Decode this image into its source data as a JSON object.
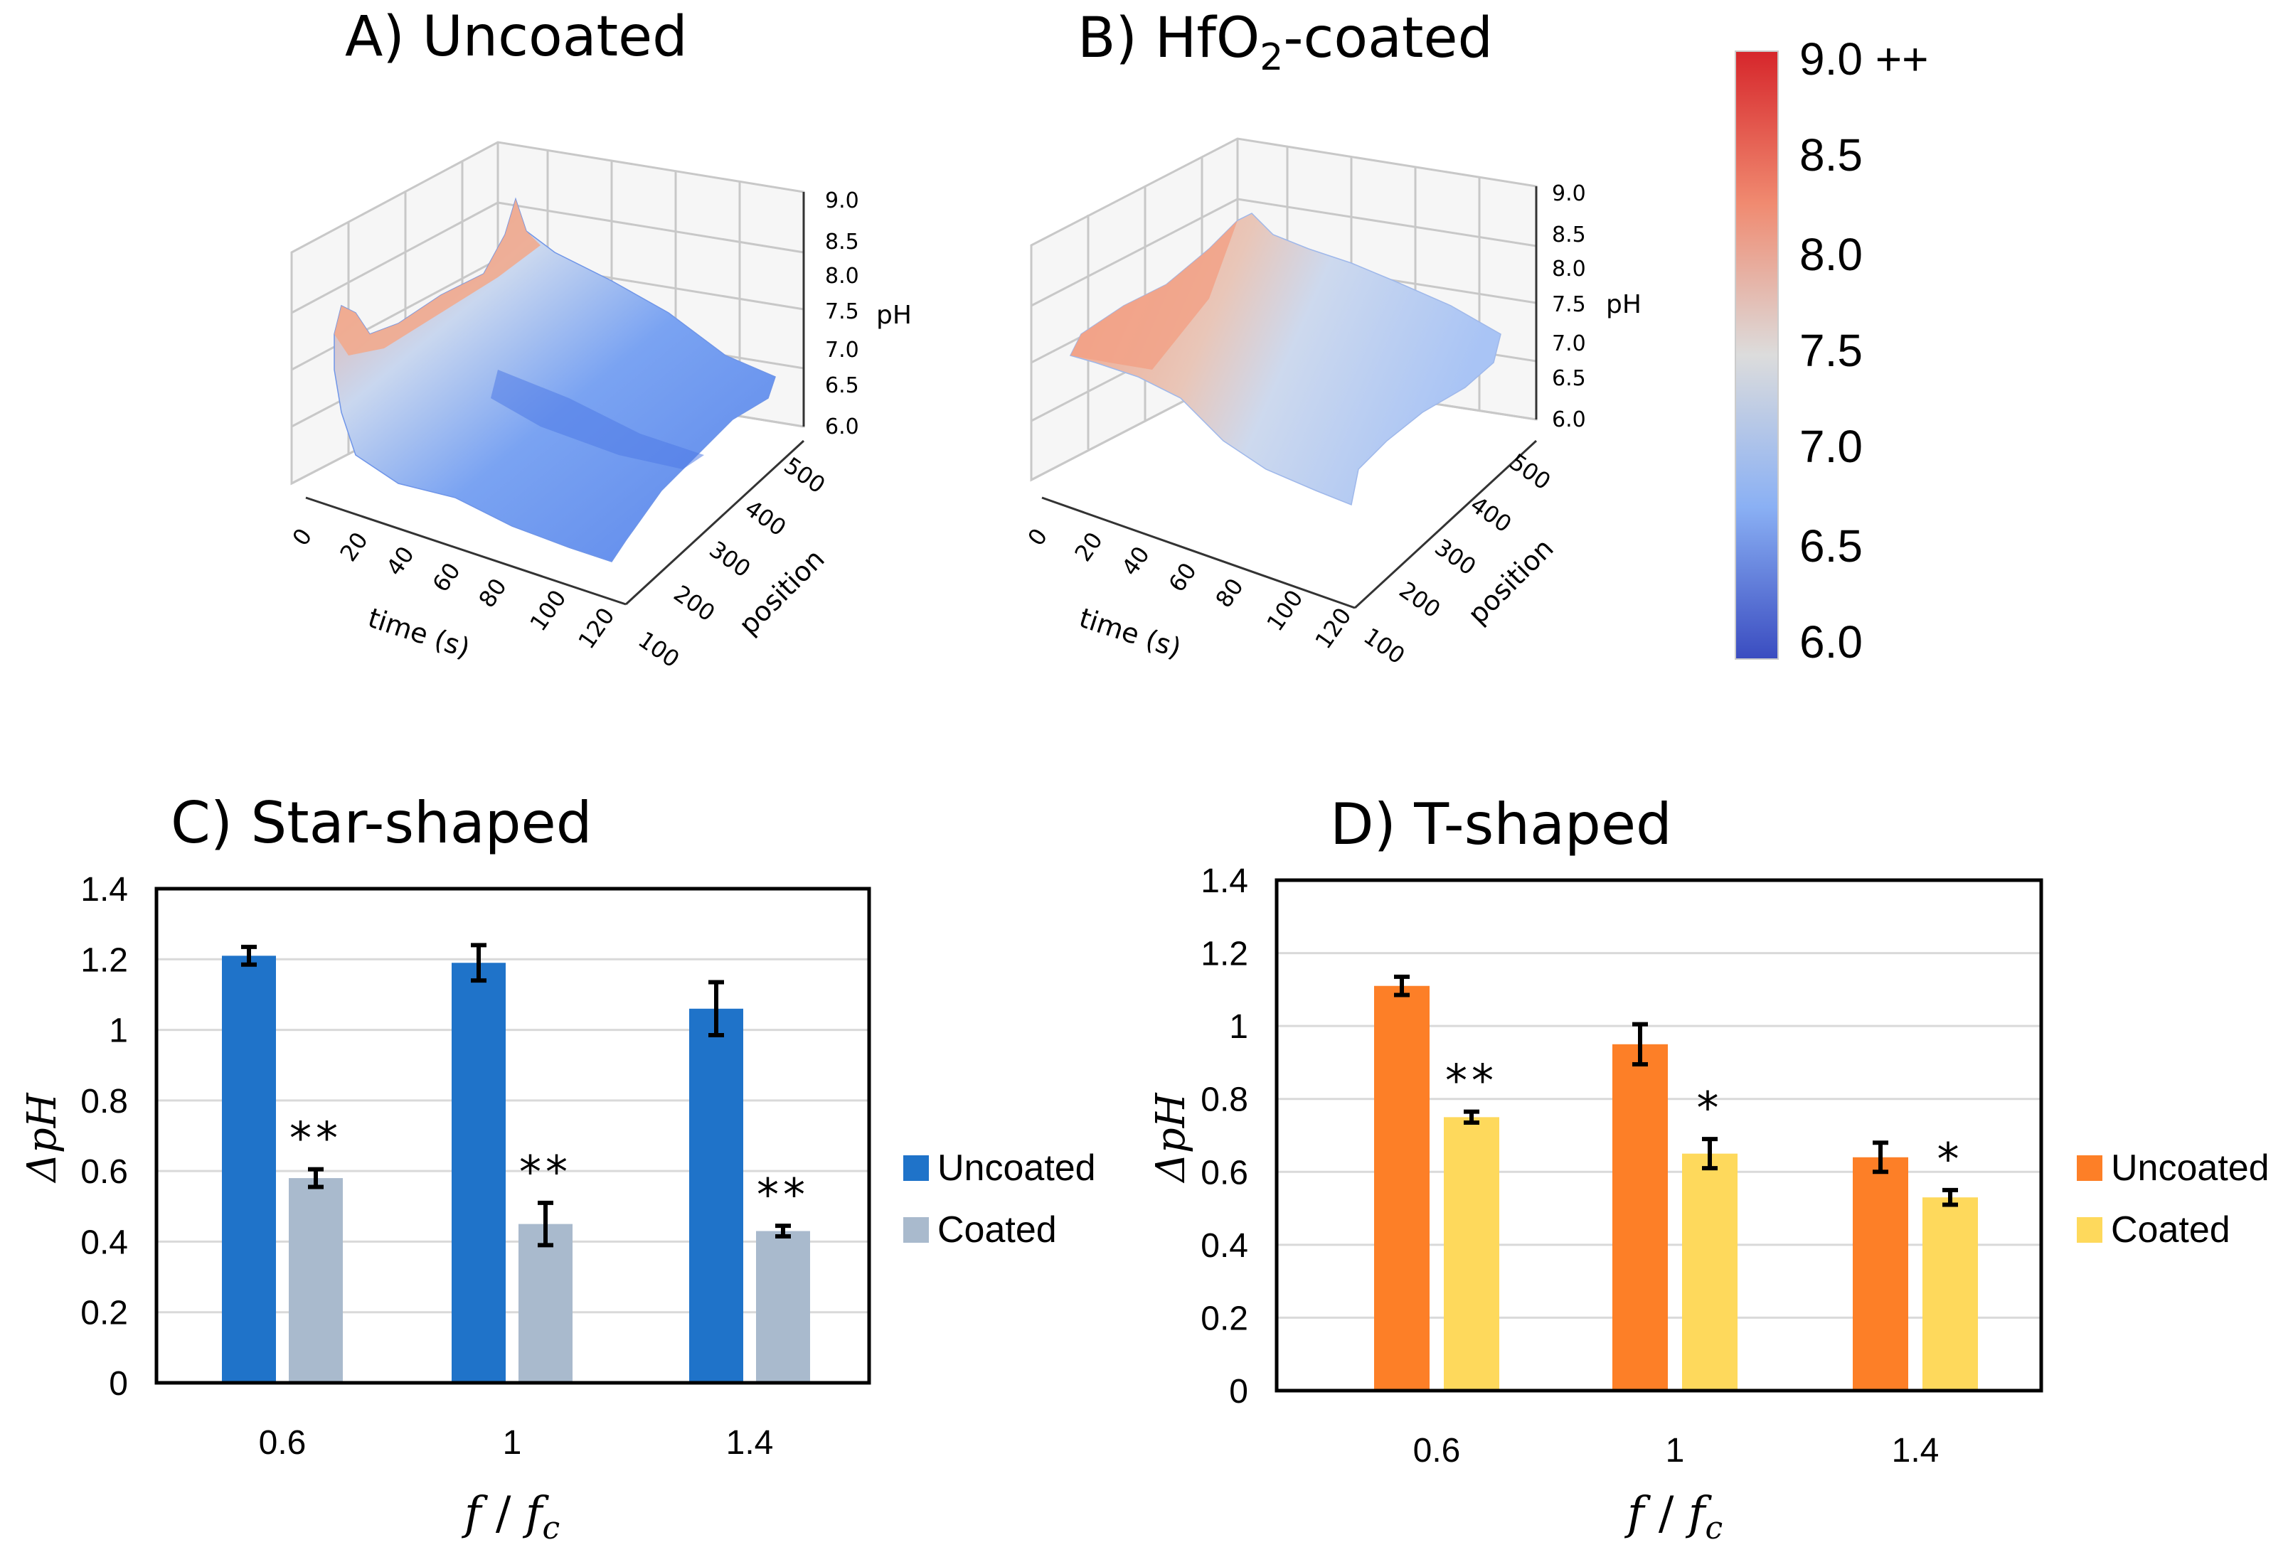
{
  "chart_data": [
    {
      "panel": "A",
      "type": "surface3d",
      "title": "A)  Uncoated",
      "xlabel": "time (s)",
      "ylabel": "position",
      "zlabel": "pH",
      "x_ticks": [
        "0",
        "20",
        "40",
        "60",
        "80",
        "100",
        "120"
      ],
      "y_ticks": [
        "100",
        "200",
        "300",
        "400",
        "500"
      ],
      "z_ticks": [
        "6.0",
        "6.5",
        "7.0",
        "7.5",
        "8.0",
        "8.5",
        "9.0"
      ],
      "xlim": [
        0,
        130
      ],
      "ylim": [
        100,
        520
      ],
      "zlim": [
        6.0,
        9.0
      ],
      "description_values": {
        "peak_early_pH": 8.0,
        "peak_mid_pH": 8.8,
        "baseline_pH": 6.5
      }
    },
    {
      "panel": "B",
      "type": "surface3d",
      "title_prefix": "B)  HfO",
      "title_sub": "2",
      "title_suffix": "-coated",
      "xlabel": "time (s)",
      "ylabel": "position",
      "zlabel": "pH",
      "x_ticks": [
        "0",
        "20",
        "40",
        "60",
        "80",
        "100",
        "120"
      ],
      "y_ticks": [
        "100",
        "200",
        "300",
        "400",
        "500"
      ],
      "z_ticks": [
        "6.0",
        "6.5",
        "7.0",
        "7.5",
        "8.0",
        "8.5",
        "9.0"
      ],
      "xlim": [
        0,
        130
      ],
      "ylim": [
        100,
        520
      ],
      "zlim": [
        6.0,
        9.0
      ],
      "description_values": {
        "peak_early_pH": 7.8,
        "baseline_pH": 7.1
      }
    },
    {
      "panel": "colorbar",
      "type": "colorbar",
      "labels": [
        "9.0 ++",
        "8.5",
        "8.0",
        "7.5",
        "7.0",
        "6.5",
        "6.0"
      ],
      "range": [
        6.0,
        9.0
      ],
      "colors": {
        "top": "#d6262b",
        "mid": "#dddddd",
        "bottom": "#3a4cc0"
      }
    },
    {
      "panel": "C",
      "type": "bar",
      "title": "C) Star-shaped",
      "xlabel_main": "f",
      "xlabel_slash": " / ",
      "xlabel_sub_base": "f",
      "xlabel_sub": "c",
      "ylabel": "ΔpH",
      "categories": [
        "0.6",
        "1",
        "1.4"
      ],
      "ylim": [
        0,
        1.4
      ],
      "yticks": [
        "0",
        "0.2",
        "0.4",
        "0.6",
        "0.8",
        "1",
        "1.2",
        "1.4"
      ],
      "series": [
        {
          "name": "Uncoated",
          "color": "#1f73c9",
          "values": [
            1.21,
            1.19,
            1.06
          ],
          "errors": [
            0.025,
            0.05,
            0.075
          ]
        },
        {
          "name": "Coated",
          "color": "#a9bacd",
          "values": [
            0.58,
            0.45,
            0.43
          ],
          "errors": [
            0.025,
            0.06,
            0.015
          ]
        }
      ],
      "annotations": [
        "**",
        "**",
        "**"
      ]
    },
    {
      "panel": "D",
      "type": "bar",
      "title": "D) T-shaped",
      "xlabel_main": "f",
      "xlabel_slash": " / ",
      "xlabel_sub_base": "f",
      "xlabel_sub": "c",
      "ylabel": "ΔpH",
      "categories": [
        "0.6",
        "1",
        "1.4"
      ],
      "ylim": [
        0,
        1.4
      ],
      "yticks": [
        "0",
        "0.2",
        "0.4",
        "0.6",
        "0.8",
        "1",
        "1.2",
        "1.4"
      ],
      "series": [
        {
          "name": "Uncoated",
          "color": "#fd7f27",
          "values": [
            1.11,
            0.95,
            0.64
          ],
          "errors": [
            0.025,
            0.055,
            0.04
          ]
        },
        {
          "name": "Coated",
          "color": "#fed95c",
          "values": [
            0.75,
            0.65,
            0.53
          ],
          "errors": [
            0.015,
            0.04,
            0.02
          ]
        }
      ],
      "annotations": [
        "**",
        "*",
        "*"
      ]
    }
  ]
}
